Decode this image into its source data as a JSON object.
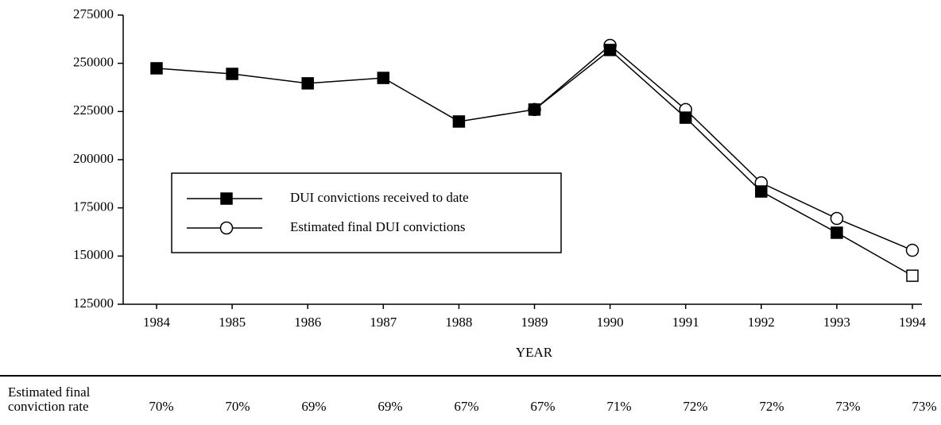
{
  "chart_data": {
    "type": "line",
    "categories": [
      "1984",
      "1985",
      "1986",
      "1987",
      "1988",
      "1989",
      "1990",
      "1991",
      "1992",
      "1993",
      "1994"
    ],
    "xlabel": "YEAR",
    "series": [
      {
        "name": "DUI convictions received to date",
        "color": "#000000",
        "marker": "square",
        "values": [
          247400,
          244500,
          239600,
          242400,
          219800,
          226000,
          256900,
          221800,
          183500,
          162100,
          139800
        ],
        "open_marker_index": 10
      },
      {
        "name": "Estimated final DUI convictions",
        "color": "#000000",
        "marker": "circle",
        "values": [
          null,
          null,
          null,
          null,
          null,
          226000,
          259300,
          226000,
          188000,
          169500,
          153000
        ]
      }
    ],
    "ylim": [
      125000,
      275000
    ],
    "yticks": [
      125000,
      150000,
      175000,
      200000,
      225000,
      250000,
      275000
    ],
    "table": {
      "label": [
        "Estimated final",
        "conviction rate"
      ],
      "values": [
        70,
        70,
        69,
        69,
        67,
        67,
        71,
        72,
        72,
        73,
        73
      ],
      "value_labels": [
        "70%",
        "70%",
        "69%",
        "69%",
        "67%",
        "67%",
        "71%",
        "72%",
        "72%",
        "73%",
        "73%"
      ]
    }
  }
}
